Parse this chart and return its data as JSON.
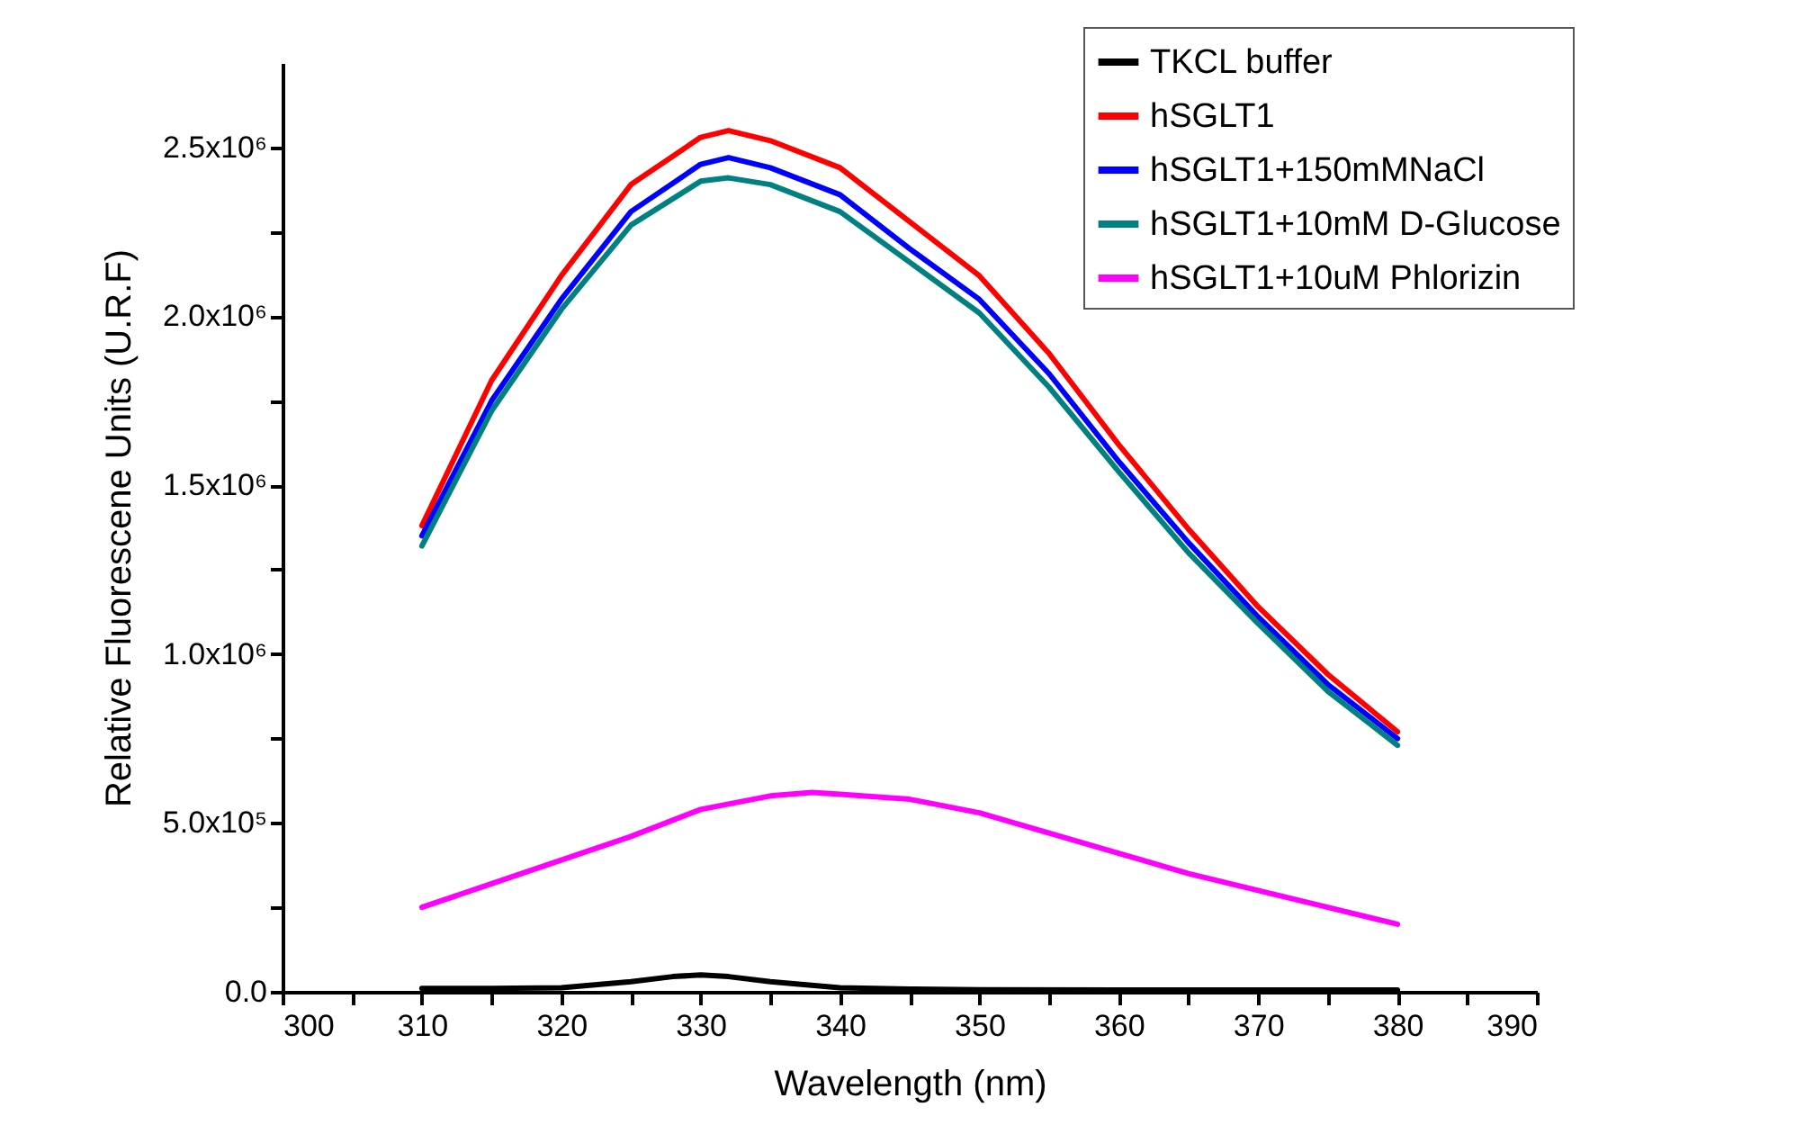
{
  "chart_data": {
    "type": "line",
    "xlabel": "Wavelength (nm)",
    "ylabel": "Relative Fluorescene Units (U.R.F)",
    "xlim": [
      300,
      390
    ],
    "ylim": [
      0,
      2750000
    ],
    "xticks": [
      300,
      {
        "value": 305,
        "label": null
      },
      310,
      {
        "value": 315,
        "label": null
      },
      320,
      {
        "value": 325,
        "label": null
      },
      330,
      {
        "value": 335,
        "label": null
      },
      340,
      {
        "value": 345,
        "label": null
      },
      350,
      {
        "value": 355,
        "label": null
      },
      360,
      {
        "value": 365,
        "label": null
      },
      370,
      {
        "value": 375,
        "label": null
      },
      380,
      {
        "value": 385,
        "label": null
      },
      390
    ],
    "yticks": [
      {
        "value": 0,
        "label": "0.0"
      },
      {
        "value": 250000,
        "label": null
      },
      {
        "value": 500000,
        "label": "5.0x10⁵"
      },
      {
        "value": 750000,
        "label": null
      },
      {
        "value": 1000000,
        "label": "1.0x10⁶"
      },
      {
        "value": 1250000,
        "label": null
      },
      {
        "value": 1500000,
        "label": "1.5x10⁶"
      },
      {
        "value": 1750000,
        "label": null
      },
      {
        "value": 2000000,
        "label": "2.0x10⁶"
      },
      {
        "value": 2250000,
        "label": null
      },
      {
        "value": 2500000,
        "label": "2.5x10⁶"
      }
    ],
    "grid": false,
    "legend": "top right",
    "marker": "none",
    "line_style": "solid",
    "series": [
      {
        "name": "TKCL buffer",
        "color": "#000000",
        "x": [
          310,
          315,
          320,
          325,
          328,
          330,
          332,
          335,
          340,
          345,
          350,
          360,
          370,
          380
        ],
        "values": [
          10000,
          10000,
          12000,
          30000,
          45000,
          50000,
          45000,
          30000,
          12000,
          8000,
          6000,
          5000,
          5000,
          5000
        ]
      },
      {
        "name": "hSGLT1",
        "color": "#ff0000",
        "x": [
          310,
          315,
          320,
          325,
          330,
          332,
          335,
          340,
          345,
          350,
          355,
          360,
          365,
          370,
          375,
          380
        ],
        "values": [
          1380000,
          1810000,
          2120000,
          2390000,
          2530000,
          2550000,
          2520000,
          2440000,
          2280000,
          2120000,
          1890000,
          1620000,
          1370000,
          1140000,
          940000,
          770000
        ]
      },
      {
        "name": "hSGLT1+150mMNaCl",
        "color": "#0000ff",
        "x": [
          310,
          315,
          320,
          325,
          330,
          332,
          335,
          340,
          345,
          350,
          355,
          360,
          365,
          370,
          375,
          380
        ],
        "values": [
          1350000,
          1750000,
          2050000,
          2310000,
          2450000,
          2470000,
          2440000,
          2360000,
          2200000,
          2050000,
          1830000,
          1570000,
          1330000,
          1110000,
          910000,
          750000
        ]
      },
      {
        "name": "hSGLT1+10mM D-Glucose",
        "color": "#008080",
        "x": [
          310,
          315,
          320,
          325,
          330,
          332,
          335,
          340,
          345,
          350,
          355,
          360,
          365,
          370,
          375,
          380
        ],
        "values": [
          1320000,
          1720000,
          2020000,
          2270000,
          2400000,
          2410000,
          2390000,
          2310000,
          2160000,
          2010000,
          1790000,
          1540000,
          1300000,
          1090000,
          890000,
          730000
        ]
      },
      {
        "name": "hSGLT1+10uM Phlorizin",
        "color": "#ff00ff",
        "x": [
          310,
          315,
          320,
          325,
          330,
          335,
          338,
          340,
          345,
          350,
          355,
          360,
          365,
          370,
          375,
          380
        ],
        "values": [
          250000,
          320000,
          390000,
          460000,
          540000,
          580000,
          590000,
          585000,
          570000,
          530000,
          470000,
          410000,
          350000,
          300000,
          250000,
          200000
        ]
      }
    ]
  }
}
